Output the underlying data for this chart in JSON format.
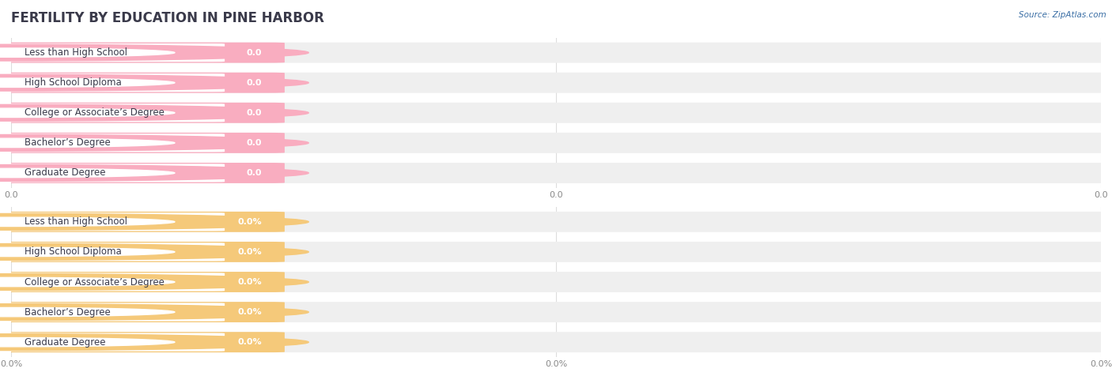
{
  "title": "FERTILITY BY EDUCATION IN PINE HARBOR",
  "source": "Source: ZipAtlas.com",
  "background_color": "#ffffff",
  "sections": [
    {
      "categories": [
        "Less than High School",
        "High School Diploma",
        "College or Associate’s Degree",
        "Bachelor’s Degree",
        "Graduate Degree"
      ],
      "values": [
        0.0,
        0.0,
        0.0,
        0.0,
        0.0
      ],
      "bar_color": "#f9adc0",
      "value_labels": [
        "0.0",
        "0.0",
        "0.0",
        "0.0",
        "0.0"
      ],
      "tick_labels": [
        "0.0",
        "0.0",
        "0.0"
      ]
    },
    {
      "categories": [
        "Less than High School",
        "High School Diploma",
        "College or Associate’s Degree",
        "Bachelor’s Degree",
        "Graduate Degree"
      ],
      "values": [
        0.0,
        0.0,
        0.0,
        0.0,
        0.0
      ],
      "bar_color": "#f5c97a",
      "value_labels": [
        "0.0%",
        "0.0%",
        "0.0%",
        "0.0%",
        "0.0%"
      ],
      "tick_labels": [
        "0.0%",
        "0.0%",
        "0.0%"
      ]
    }
  ],
  "title_color": "#3a3a4a",
  "label_text_color": "#3a3a4a",
  "axis_tick_color": "#888888",
  "grid_color": "#dddddd",
  "source_color": "#3a6ea5",
  "bar_bg_color": "#efefef",
  "title_fontsize": 12,
  "label_fontsize": 8.5,
  "value_fontsize": 8,
  "axis_fontsize": 8
}
